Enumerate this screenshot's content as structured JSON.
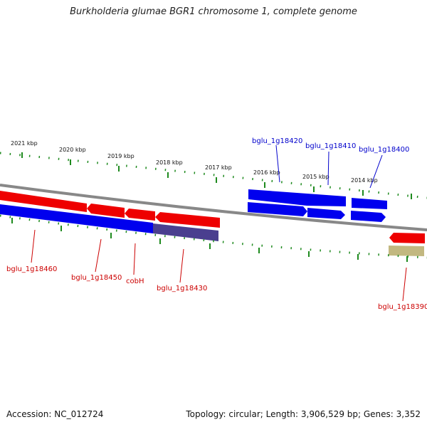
{
  "title": "Burkholderia glumae BGR1 chromosome 1, complete genome",
  "footer": {
    "accession": "Accession: NC_012724",
    "summary": "Topology: circular; Length: 3,906,529 bp; Genes: 3,352"
  },
  "colors": {
    "backbone": "#888888",
    "tick": "#1e8a1e",
    "forward_gene": "#0000ee",
    "reverse_gene": "#ee0000",
    "rna_gene": "#4a3f8f",
    "other_feature": "#c2b880",
    "forward_label": "#0000cc",
    "reverse_label": "#cc0000"
  },
  "ruler_labels": [
    "2021 kbp",
    "2020 kbp",
    "2019 kbp",
    "2018 kbp",
    "2017 kbp",
    "2016 kbp",
    "2015 kbp",
    "2014 kbp"
  ],
  "gene_labels": {
    "forward": [
      "bglu_1g18420",
      "bglu_1g18410",
      "bglu_1g18400"
    ],
    "reverse": [
      "bglu_1g18460",
      "bglu_1g18450",
      "cobH",
      "bglu_1g18430",
      "bglu_1g18390"
    ]
  }
}
